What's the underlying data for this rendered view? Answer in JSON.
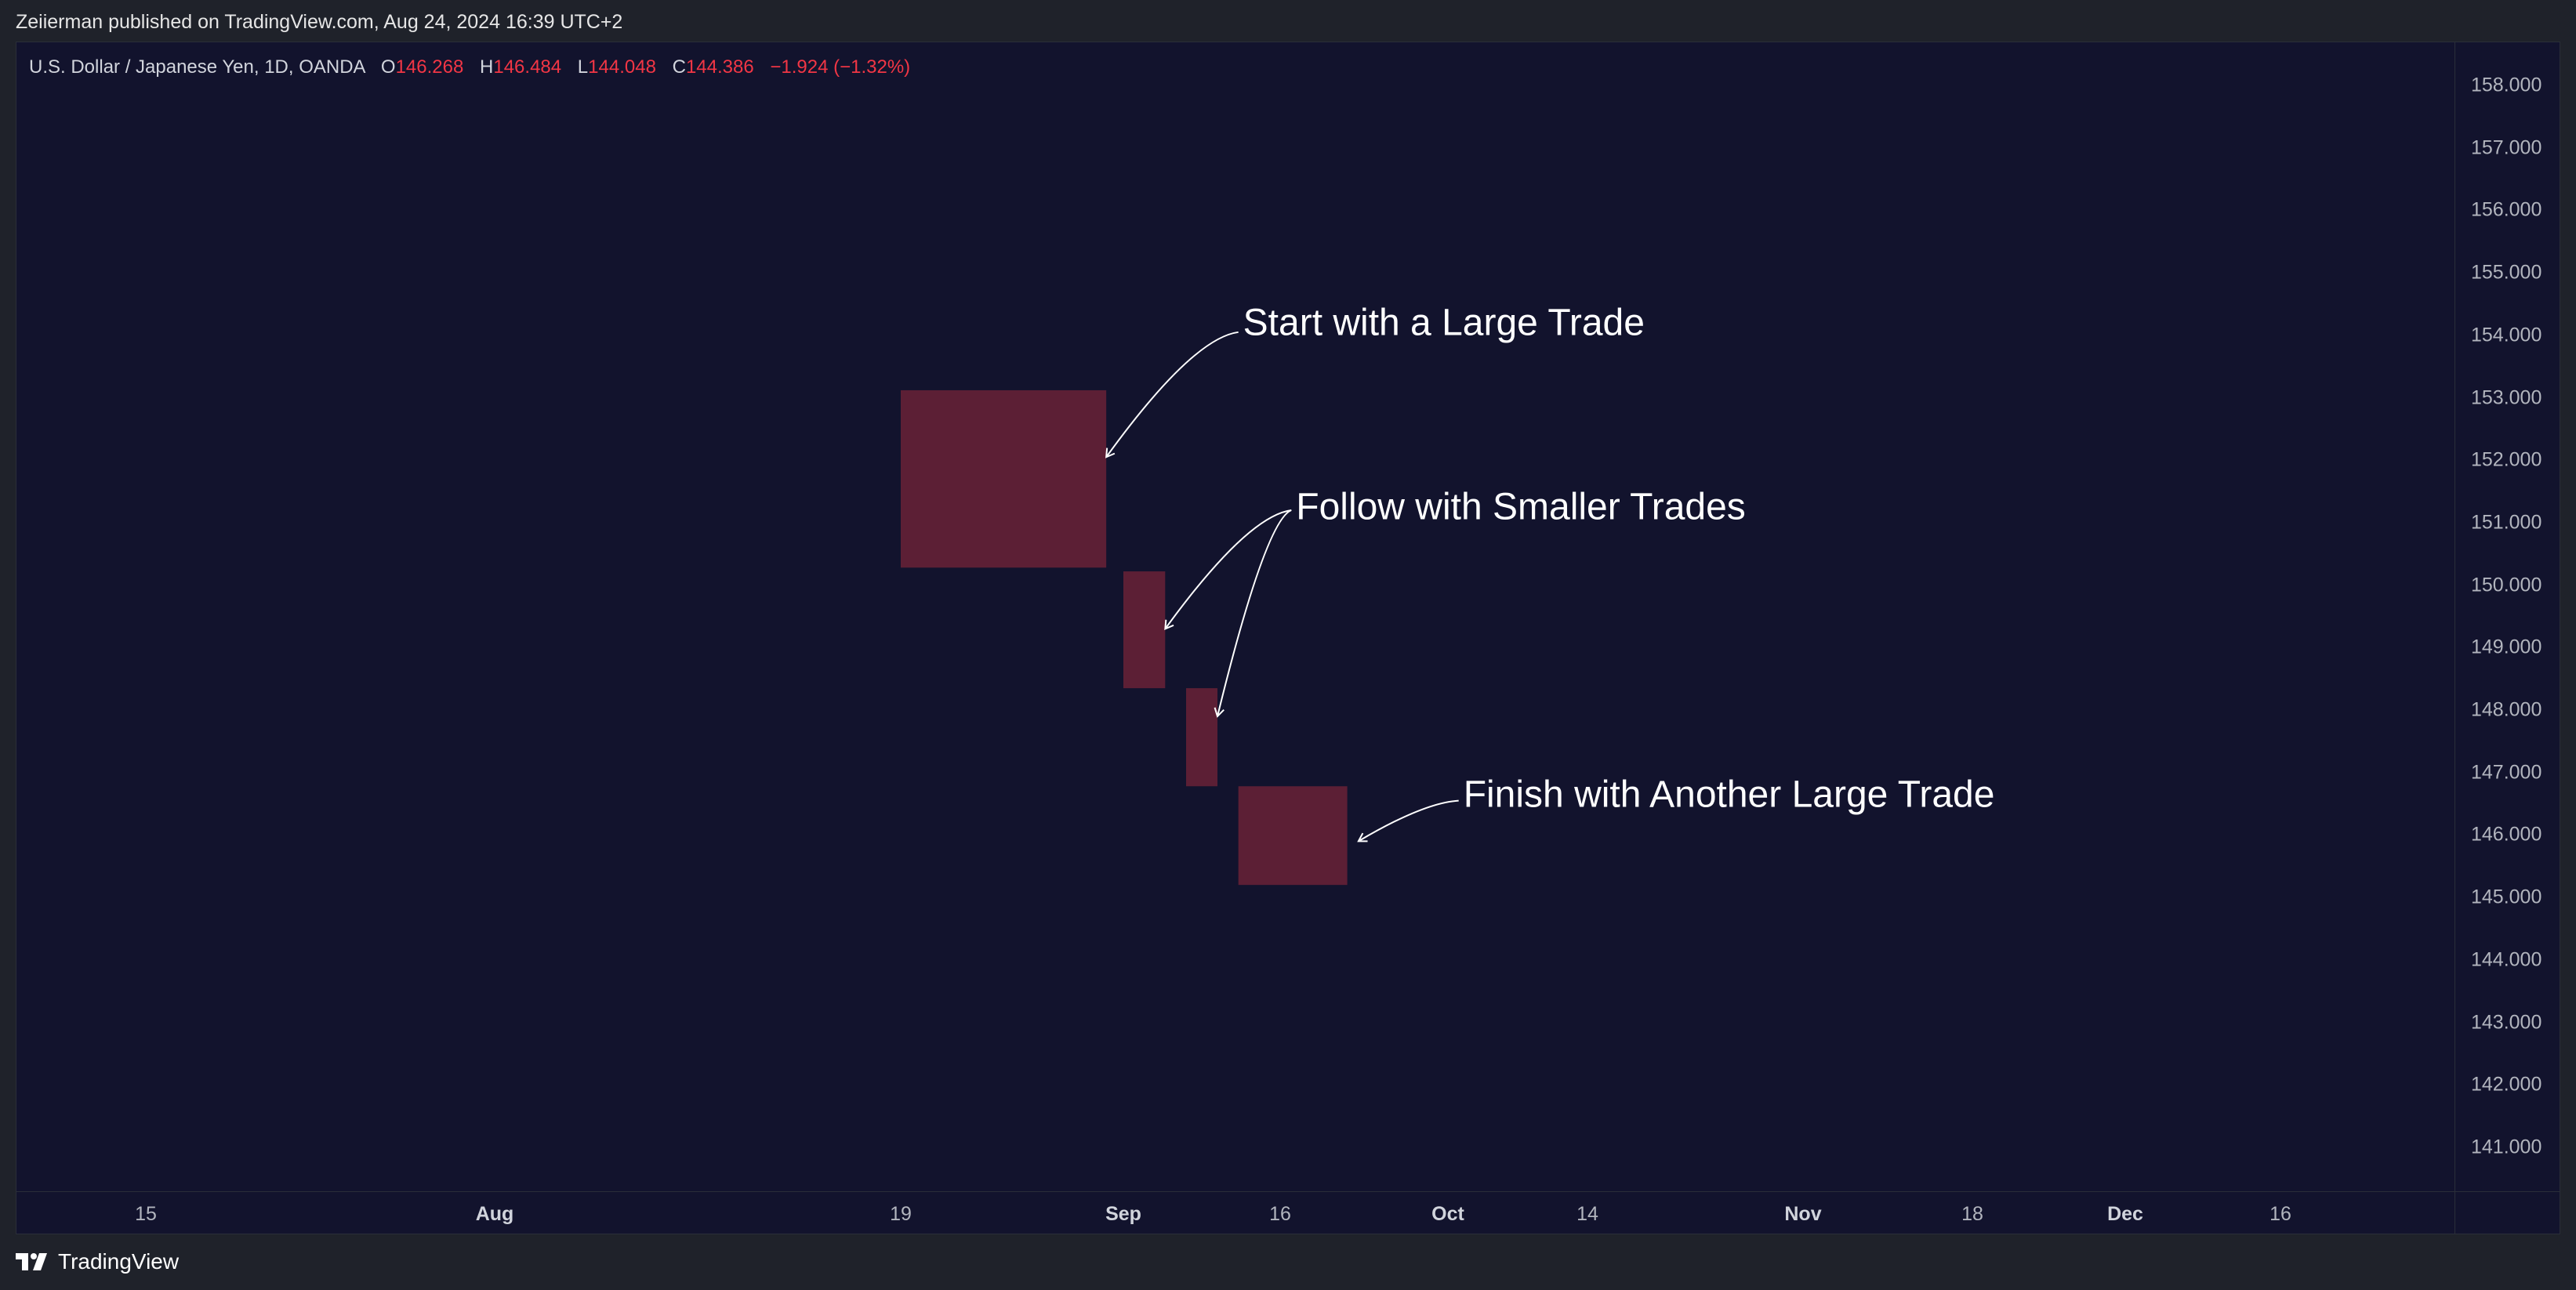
{
  "header": {
    "published": "Zeiierman published on TradingView.com, Aug 24, 2024 16:39 UTC+2"
  },
  "legend": {
    "symbol": "U.S. Dollar / Japanese Yen, 1D, OANDA",
    "o_label": "O",
    "o_value": "146.268",
    "h_label": "H",
    "h_value": "146.484",
    "l_label": "L",
    "l_value": "144.048",
    "c_label": "C",
    "c_value": "144.386",
    "change": "−1.924 (−1.32%)"
  },
  "colors": {
    "chart_bg": "#12132d",
    "box_fill": "#5c1f35",
    "negative": "#f23645",
    "annotation": "#ffffff"
  },
  "chart_data": {
    "type": "box",
    "ylim": [
      140.3,
      158.7
    ],
    "price_ticks": [
      "158.000",
      "157.000",
      "156.000",
      "155.000",
      "154.000",
      "153.000",
      "152.000",
      "151.000",
      "150.000",
      "149.000",
      "148.000",
      "147.000",
      "146.000",
      "145.000",
      "144.000",
      "143.000",
      "142.000",
      "141.000"
    ],
    "time_ticks": [
      {
        "label": "15",
        "bold": false
      },
      {
        "label": "Aug",
        "bold": true
      },
      {
        "label": "19",
        "bold": false
      },
      {
        "label": "Sep",
        "bold": true
      },
      {
        "label": "16",
        "bold": false
      },
      {
        "label": "Oct",
        "bold": true
      },
      {
        "label": "14",
        "bold": false
      },
      {
        "label": "Nov",
        "bold": true
      },
      {
        "label": "18",
        "bold": false
      },
      {
        "label": "Dec",
        "bold": true
      },
      {
        "label": "16",
        "bold": false
      }
    ],
    "boxes": [
      {
        "name": "large-trade-1",
        "start": "2024-08-19",
        "end": "2024-08-31",
        "top": 153.12,
        "bottom": 150.28
      },
      {
        "name": "small-trade-1",
        "start": "2024-09-01",
        "end": "2024-09-05",
        "top": 150.22,
        "bottom": 148.35
      },
      {
        "name": "small-trade-2",
        "start": "2024-09-07",
        "end": "2024-09-10",
        "top": 148.35,
        "bottom": 146.78
      },
      {
        "name": "large-trade-2",
        "start": "2024-09-12",
        "end": "2024-09-22",
        "top": 146.78,
        "bottom": 145.2
      }
    ],
    "annotations": [
      {
        "text": "Start with a Large Trade",
        "date": "2024-09-12",
        "price": 154.2
      },
      {
        "text": "Follow with Smaller Trades",
        "date": "2024-09-17",
        "price": 151.25
      },
      {
        "text": "Finish with Another Large Trade",
        "date": "2024-10-02",
        "price": 146.65
      }
    ],
    "arrows": [
      {
        "from_date": "2024-09-12",
        "from_price": 154.05,
        "to_date": "2024-08-31",
        "to_price": 152.05
      },
      {
        "from_date": "2024-09-17",
        "from_price": 151.2,
        "to_date": "2024-09-05",
        "to_price": 149.3
      },
      {
        "from_date": "2024-09-17",
        "from_price": 151.2,
        "to_date": "2024-09-10",
        "to_price": 147.9
      },
      {
        "from_date": "2024-10-02",
        "from_price": 146.55,
        "to_date": "2024-09-23",
        "to_price": 145.9
      }
    ]
  },
  "footer": {
    "brand": "TradingView"
  }
}
